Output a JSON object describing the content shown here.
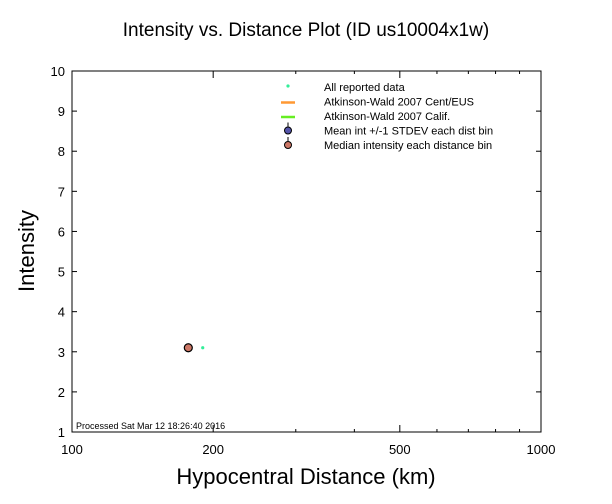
{
  "chart_data": {
    "type": "scatter",
    "title": "Intensity vs. Distance Plot (ID us10004x1w)",
    "xlabel": "Hypocentral Distance (km)",
    "ylabel": "Intensity",
    "x_scale": "log",
    "xlim": [
      100,
      1000
    ],
    "ylim": [
      1,
      10
    ],
    "x_ticks": [
      100,
      200,
      500,
      1000
    ],
    "y_ticks": [
      1,
      2,
      3,
      4,
      5,
      6,
      7,
      8,
      9,
      10
    ],
    "grid": false,
    "legend_position": "top-right",
    "legend": [
      {
        "name": "All reported data",
        "marker": "dot",
        "color": "#33ee99"
      },
      {
        "name": "Atkinson-Wald 2007 Cent/EUS",
        "marker": "line",
        "color": "#ff9933"
      },
      {
        "name": "Atkinson-Wald 2007 Calif.",
        "marker": "line",
        "color": "#66ee22"
      },
      {
        "name": "Mean int +/-1 STDEV each dist bin",
        "marker": "circle",
        "color": "#5555aa"
      },
      {
        "name": "Median intensity each distance bin",
        "marker": "circle",
        "color": "#cc7766"
      }
    ],
    "series": [
      {
        "name": "All reported data",
        "points": [
          {
            "x": 190,
            "y": 3.1
          }
        ]
      },
      {
        "name": "Median intensity each distance bin",
        "points": [
          {
            "x": 177,
            "y": 3.1
          }
        ]
      }
    ],
    "footnote": "Processed Sat Mar 12 18:26:40 2016"
  }
}
